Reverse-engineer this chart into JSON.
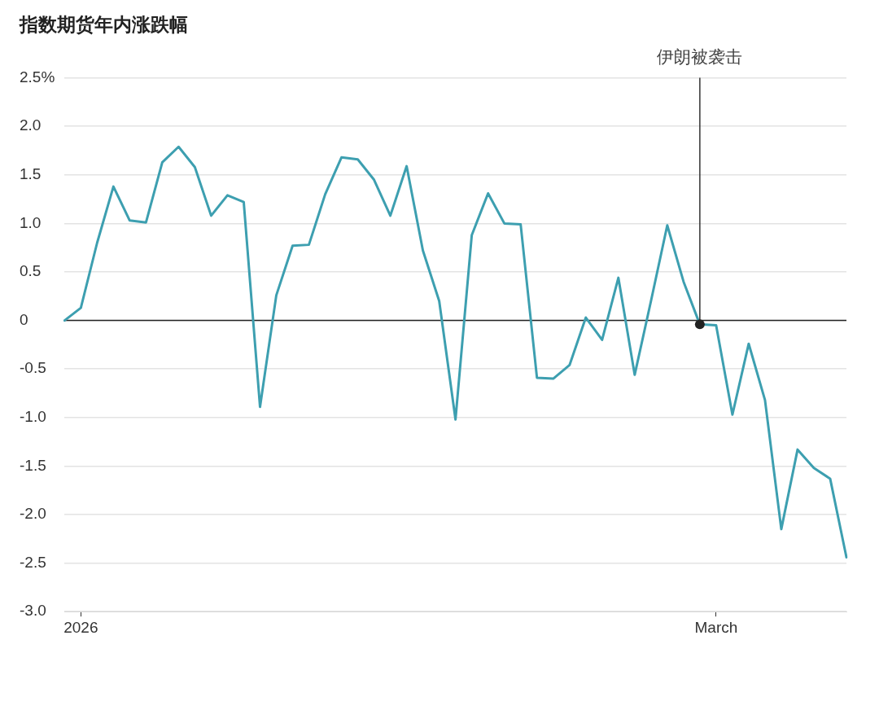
{
  "chart_data": {
    "type": "line",
    "title": "指数期货年内涨跌幅",
    "categories": [
      null,
      "2026",
      null,
      null,
      null,
      null,
      null,
      null,
      null,
      null,
      null,
      null,
      null,
      null,
      null,
      null,
      null,
      null,
      null,
      null,
      null,
      null,
      null,
      null,
      null,
      null,
      null,
      null,
      null,
      null,
      null,
      null,
      null,
      null,
      null,
      null,
      null,
      null,
      null,
      null,
      "March",
      null,
      null,
      null,
      null,
      null,
      null,
      null,
      null
    ],
    "series": [
      {
        "color": "#3d9fb0",
        "values": [
          0,
          0.13,
          0.8,
          1.38,
          1.03,
          1.01,
          1.63,
          1.79,
          1.58,
          1.08,
          1.29,
          1.22,
          -0.89,
          0.26,
          0.77,
          0.78,
          1.3,
          1.68,
          1.66,
          1.45,
          1.08,
          1.59,
          0.72,
          0.2,
          -1.02,
          0.88,
          1.31,
          1.0,
          0.99,
          -0.59,
          -0.6,
          -0.46,
          0.03,
          -0.2,
          0.44,
          -0.56,
          0.2,
          0.98,
          0.4,
          -0.04,
          -0.05,
          -0.97,
          -0.24,
          -0.82,
          -2.15,
          -1.33,
          -1.52,
          -1.63,
          -2.44
        ]
      },
      {
        "type": "scatter",
        "color": "#222222",
        "marker": "circle",
        "values": [
          null,
          null,
          null,
          null,
          null,
          null,
          null,
          null,
          null,
          null,
          null,
          null,
          null,
          null,
          null,
          null,
          null,
          null,
          null,
          null,
          null,
          null,
          null,
          null,
          null,
          null,
          null,
          null,
          null,
          null,
          null,
          null,
          null,
          null,
          null,
          null,
          null,
          null,
          null,
          -0.04,
          null,
          null,
          null,
          null,
          null,
          null,
          null,
          null,
          null
        ]
      }
    ],
    "ylim": [
      -3,
      2.5
    ],
    "yticks": [
      {
        "value": 2.5,
        "label": "2.5%"
      },
      {
        "value": 2,
        "label": "2.0"
      },
      1.5,
      {
        "value": 1,
        "label": "1.0"
      },
      0.5,
      0,
      -0.5,
      {
        "value": -1,
        "label": "-1.0"
      },
      -1.5,
      {
        "value": -2,
        "label": "-2.0"
      },
      -2.5,
      {
        "value": -3,
        "label": "-3.0"
      }
    ],
    "grid": "y",
    "marker": "none",
    "line_style": "solid",
    "legend": false,
    "ref_lines": [
      {
        "axis": "y",
        "value": 0,
        "color": "#222222"
      }
    ],
    "annotations": [
      {
        "text": "伊朗被袭击",
        "y": -0.04
      }
    ]
  }
}
